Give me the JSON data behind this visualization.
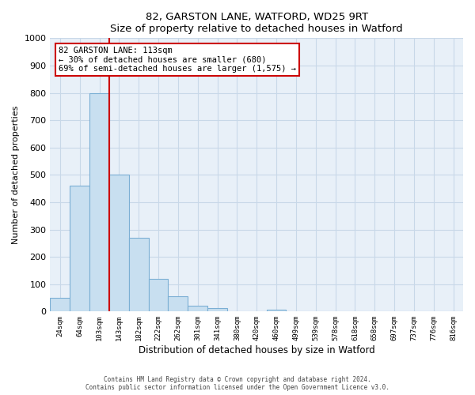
{
  "title": "82, GARSTON LANE, WATFORD, WD25 9RT",
  "subtitle": "Size of property relative to detached houses in Watford",
  "xlabel": "Distribution of detached houses by size in Watford",
  "ylabel": "Number of detached properties",
  "bar_labels": [
    "24sqm",
    "64sqm",
    "103sqm",
    "143sqm",
    "182sqm",
    "222sqm",
    "262sqm",
    "301sqm",
    "341sqm",
    "380sqm",
    "420sqm",
    "460sqm",
    "499sqm",
    "539sqm",
    "578sqm",
    "618sqm",
    "658sqm",
    "697sqm",
    "737sqm",
    "776sqm",
    "816sqm"
  ],
  "bar_values": [
    50,
    460,
    800,
    500,
    270,
    120,
    55,
    20,
    12,
    0,
    0,
    7,
    0,
    0,
    0,
    0,
    0,
    0,
    0,
    0,
    0
  ],
  "bar_color": "#c8dff0",
  "bar_edge_color": "#7bafd4",
  "grid_color": "#c8d8e8",
  "bg_color": "#e8f0f8",
  "vline_color": "#cc0000",
  "annotation_title": "82 GARSTON LANE: 113sqm",
  "annotation_line1": "← 30% of detached houses are smaller (680)",
  "annotation_line2": "69% of semi-detached houses are larger (1,575) →",
  "annotation_box_color": "#ffffff",
  "annotation_box_edge": "#cc0000",
  "ylim": [
    0,
    1000
  ],
  "yticks": [
    0,
    100,
    200,
    300,
    400,
    500,
    600,
    700,
    800,
    900,
    1000
  ],
  "footer1": "Contains HM Land Registry data © Crown copyright and database right 2024.",
  "footer2": "Contains public sector information licensed under the Open Government Licence v3.0.",
  "vline_bar_index": 2
}
